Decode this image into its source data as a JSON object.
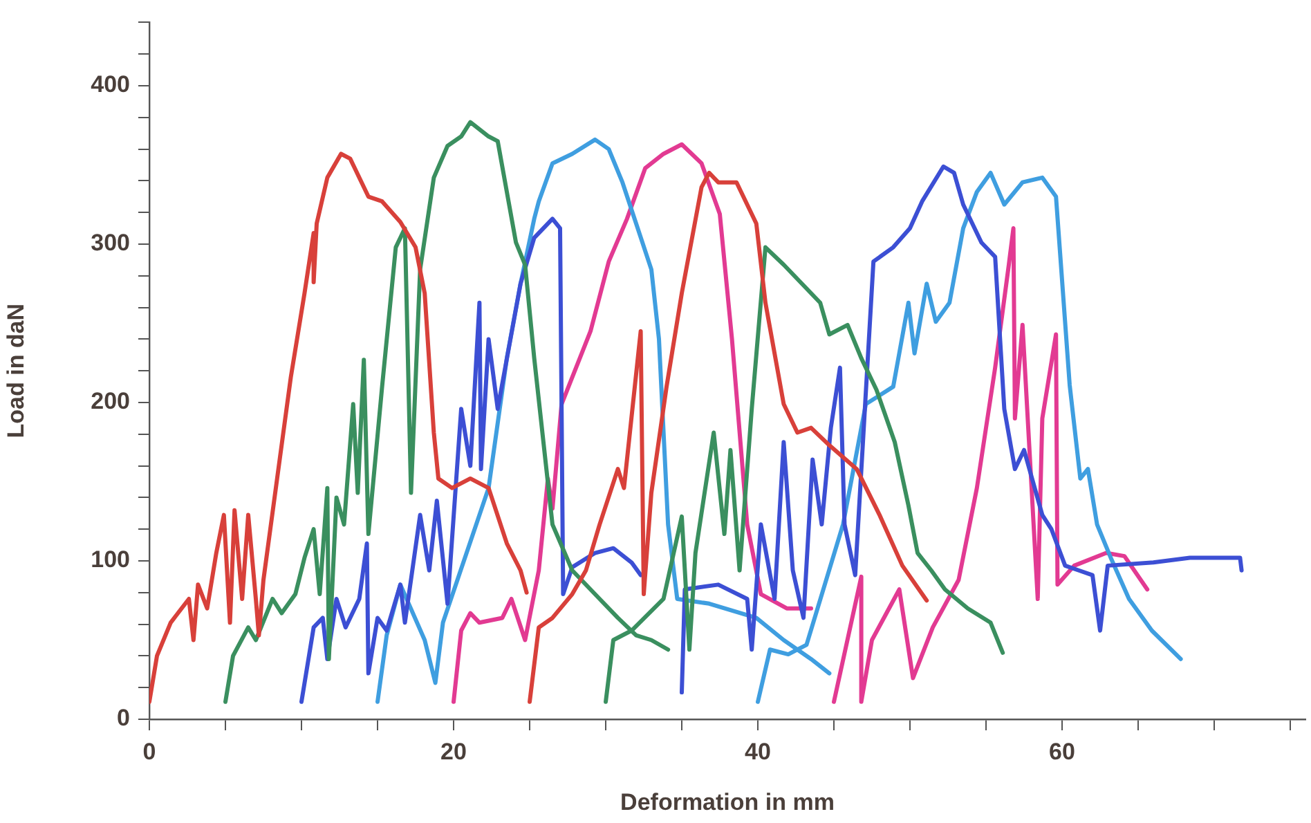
{
  "chart_data": {
    "type": "line",
    "xlabel": "Deformation in mm",
    "ylabel": "Load in daN",
    "xlim": [
      0,
      76
    ],
    "ylim": [
      0,
      440
    ],
    "xticks": [
      0,
      {
        "value": 5,
        "label": null
      },
      {
        "value": 10,
        "label": null
      },
      {
        "value": 15,
        "label": null
      },
      20,
      {
        "value": 25,
        "label": null
      },
      {
        "value": 30,
        "label": null
      },
      {
        "value": 35,
        "label": null
      },
      40,
      {
        "value": 45,
        "label": null
      },
      {
        "value": 50,
        "label": null
      },
      {
        "value": 55,
        "label": null
      },
      60,
      {
        "value": 65,
        "label": null
      },
      {
        "value": 70,
        "label": null
      },
      {
        "value": 75,
        "label": null
      }
    ],
    "yticks": [
      0,
      {
        "value": 20,
        "label": null
      },
      {
        "value": 40,
        "label": null
      },
      {
        "value": 60,
        "label": null
      },
      {
        "value": 80,
        "label": null
      },
      100,
      {
        "value": 120,
        "label": null
      },
      {
        "value": 140,
        "label": null
      },
      {
        "value": 160,
        "label": null
      },
      {
        "value": 180,
        "label": null
      },
      200,
      {
        "value": 220,
        "label": null
      },
      {
        "value": 240,
        "label": null
      },
      {
        "value": 260,
        "label": null
      },
      {
        "value": 280,
        "label": null
      },
      300,
      {
        "value": 320,
        "label": null
      },
      {
        "value": 340,
        "label": null
      },
      {
        "value": 360,
        "label": null
      },
      {
        "value": 380,
        "label": null
      },
      400,
      {
        "value": 420,
        "label": null
      },
      {
        "value": 440,
        "label": null
      }
    ],
    "grid": false,
    "legend": false,
    "marker": "none",
    "line_style": "solid",
    "series": [
      {
        "color": "#d8403a",
        "x": [
          0,
          0.5,
          1.4,
          2.6,
          2.9,
          3.2,
          3.8,
          4.4,
          4.9,
          5.3,
          5.6,
          6.1,
          6.5,
          7.0,
          7.2,
          7.5,
          8.4,
          9.3,
          10.2,
          10.8,
          10.8,
          11.0,
          11.7,
          12.6,
          13.2,
          14.4,
          15.3,
          16.5,
          17.5,
          18.1,
          18.7,
          19.0,
          19.9,
          21.1,
          22.3,
          23.5,
          24.4,
          24.8
        ],
        "values": [
          11,
          40,
          61,
          76,
          50,
          85,
          70,
          105,
          129,
          61,
          132,
          76,
          129,
          76,
          53,
          88,
          152,
          216,
          269,
          307,
          276,
          313,
          342,
          357,
          354,
          330,
          327,
          314,
          298,
          269,
          181,
          152,
          146,
          152,
          146,
          111,
          94,
          80
        ]
      },
      {
        "color": "#d8403a",
        "x": [
          25.0,
          25.6,
          26.5,
          27.8,
          28.7,
          29.6,
          30.8,
          31.2,
          32.3,
          32.5,
          33.0,
          34.0,
          35.0,
          36.3,
          36.8,
          37.4,
          38.6,
          39.9,
          40.5,
          41.7,
          42.6,
          43.5,
          44.7,
          46.5,
          48.0,
          49.5,
          51.1
        ],
        "values": [
          11,
          58,
          64,
          79,
          94,
          123,
          158,
          146,
          245,
          79,
          143,
          210,
          269,
          336,
          345,
          339,
          339,
          313,
          263,
          199,
          181,
          184,
          173,
          158,
          129,
          97,
          75
        ]
      },
      {
        "color": "#3a8f5f",
        "x": [
          5.0,
          5.5,
          6.5,
          7.0,
          8.1,
          8.7,
          9.6,
          10.2,
          10.8,
          11.2,
          11.7,
          11.8,
          12.3,
          12.8,
          13.4,
          13.7,
          14.1,
          14.4,
          15.3,
          16.2,
          16.8,
          17.2,
          17.8,
          18.7,
          19.6,
          20.5,
          21.1,
          22.3,
          22.9,
          23.5,
          24.1,
          24.7,
          25.3,
          26.5,
          27.8,
          29.6,
          30.8,
          32.0,
          33.0,
          34.1
        ],
        "values": [
          11,
          40,
          58,
          50,
          76,
          67,
          79,
          102,
          120,
          79,
          146,
          38,
          140,
          123,
          199,
          143,
          227,
          117,
          210,
          298,
          310,
          143,
          284,
          342,
          362,
          368,
          377,
          368,
          365,
          333,
          301,
          287,
          228,
          123,
          94,
          76,
          64,
          53,
          50,
          44
        ]
      },
      {
        "color": "#3a8f5f",
        "x": [
          30.0,
          30.5,
          31.7,
          33.8,
          35.0,
          35.5,
          35.9,
          37.1,
          37.8,
          38.2,
          38.8,
          39.6,
          40.5,
          41.7,
          42.9,
          44.1,
          44.7,
          45.9,
          46.8,
          47.8,
          49.0,
          49.9,
          50.5,
          51.4,
          52.3,
          53.8,
          55.3,
          56.1
        ],
        "values": [
          11,
          50,
          56,
          76,
          128,
          44,
          105,
          181,
          117,
          170,
          94,
          196,
          298,
          287,
          275,
          263,
          243,
          249,
          228,
          208,
          175,
          135,
          105,
          94,
          82,
          70,
          61,
          42
        ]
      },
      {
        "color": "#3c4fd4",
        "x": [
          10.0,
          10.8,
          11.4,
          11.7,
          12.3,
          12.9,
          13.8,
          14.3,
          14.4,
          15.0,
          15.6,
          16.5,
          16.8,
          17.8,
          18.4,
          18.9,
          19.6,
          20.5,
          21.1,
          21.7,
          21.8,
          22.3,
          22.9,
          24.4,
          25.3,
          25.9,
          26.5,
          27.0,
          27.2,
          27.8,
          29.3,
          30.5,
          31.7,
          32.3
        ],
        "values": [
          11,
          58,
          64,
          38,
          76,
          58,
          76,
          111,
          29,
          64,
          56,
          85,
          61,
          129,
          94,
          138,
          73,
          196,
          160,
          263,
          158,
          240,
          196,
          275,
          304,
          310,
          316,
          310,
          79,
          96,
          105,
          108,
          99,
          91
        ]
      },
      {
        "color": "#3c4fd4",
        "x": [
          35.0,
          35.2,
          37.4,
          39.3,
          39.6,
          40.2,
          41.1,
          41.7,
          42.3,
          43.0,
          43.6,
          44.2,
          44.8,
          45.4,
          45.7,
          46.4,
          47.6,
          48.9,
          50.0,
          50.8,
          52.2,
          52.9,
          53.5,
          54.7,
          55.6,
          56.2,
          56.9,
          57.5,
          58.7,
          59.3,
          60.2,
          61.1,
          62.0,
          62.5,
          63.0,
          66.0,
          68.4,
          71.7,
          71.8
        ],
        "values": [
          17,
          82,
          85,
          76,
          44,
          123,
          76,
          175,
          94,
          64,
          164,
          123,
          184,
          222,
          123,
          91,
          289,
          298,
          310,
          327,
          349,
          345,
          325,
          301,
          292,
          196,
          158,
          170,
          129,
          120,
          97,
          94,
          91,
          56,
          97,
          99,
          102,
          102,
          94
        ]
      },
      {
        "color": "#3f9ee0",
        "x": [
          15.0,
          15.6,
          16.5,
          18.1,
          18.8,
          19.3,
          22.3,
          22.9,
          23.5,
          24.4,
          25.3,
          25.6,
          26.5,
          27.8,
          29.3,
          30.2,
          31.1,
          32.0,
          33.0,
          33.5,
          34.1,
          34.7,
          36.8,
          39.9,
          41.7,
          43.5,
          44.7
        ],
        "values": [
          11,
          53,
          85,
          50,
          23,
          61,
          146,
          187,
          228,
          275,
          316,
          327,
          351,
          357,
          366,
          360,
          339,
          313,
          284,
          240,
          123,
          76,
          73,
          64,
          50,
          38,
          29
        ]
      },
      {
        "color": "#3f9ee0",
        "x": [
          40.0,
          40.8,
          42.0,
          43.2,
          45.6,
          47.1,
          48.9,
          49.9,
          50.3,
          51.1,
          51.7,
          52.6,
          53.5,
          54.4,
          55.3,
          56.2,
          57.4,
          58.7,
          59.6,
          60.5,
          61.2,
          61.7,
          62.3,
          63.2,
          64.4,
          65.9,
          67.8
        ],
        "values": [
          11,
          44,
          41,
          47,
          123,
          199,
          210,
          263,
          231,
          275,
          251,
          263,
          310,
          333,
          345,
          325,
          339,
          342,
          330,
          211,
          152,
          158,
          123,
          102,
          76,
          56,
          38
        ]
      },
      {
        "color": "#e23a92",
        "x": [
          20.0,
          20.5,
          21.1,
          21.7,
          23.2,
          23.8,
          24.7,
          25.6,
          26.2,
          26.5,
          27.1,
          29.0,
          30.2,
          31.4,
          32.6,
          33.8,
          35.0,
          36.3,
          37.5,
          38.3,
          39.3,
          40.2,
          41.9,
          43.5
        ],
        "values": [
          11,
          56,
          67,
          61,
          64,
          76,
          50,
          94,
          152,
          133,
          199,
          245,
          289,
          316,
          348,
          357,
          363,
          351,
          319,
          240,
          123,
          79,
          70,
          70
        ]
      },
      {
        "color": "#e23a92",
        "x": [
          45.0,
          46.8,
          46.8,
          47.5,
          49.3,
          50.2,
          51.5,
          53.2,
          54.4,
          55.6,
          56.5,
          56.8,
          56.9,
          57.4,
          58.4,
          58.7,
          59.6,
          59.7,
          60.8,
          62.9,
          64.1,
          65.6
        ],
        "values": [
          11,
          90,
          11,
          50,
          82,
          26,
          58,
          88,
          146,
          222,
          287,
          310,
          190,
          249,
          76,
          190,
          243,
          85,
          97,
          105,
          103,
          82
        ]
      }
    ]
  }
}
